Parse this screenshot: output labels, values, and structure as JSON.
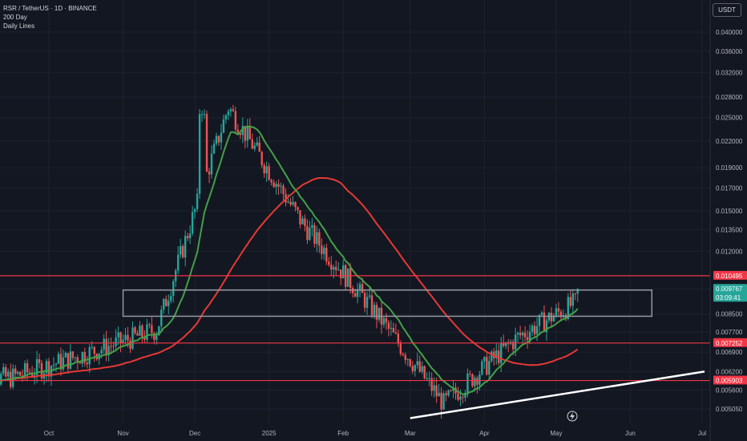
{
  "symbol_line": "RSR / TetherUS · 1D · BINANCE",
  "indicator_1": "200 Day",
  "indicator_2": "Daily Lines",
  "currency_button": "USDT",
  "colors": {
    "bg": "#131722",
    "up": "#26a69a",
    "down": "#ef5350",
    "ma200": "#e53935",
    "ma_short": "#43a047",
    "hline": "#f23645",
    "box": "#9598a1",
    "trendline": "#ffffff"
  },
  "chart_data": {
    "type": "candlestick",
    "scale": "log",
    "y_ticks": [
      "0.040000",
      "0.036000",
      "0.032000",
      "0.028000",
      "0.025000",
      "0.022000",
      "0.019000",
      "0.017000",
      "0.015000",
      "0.013500",
      "0.012000",
      "0.010495",
      "0.009767",
      "0.008500",
      "0.007700",
      "0.007252",
      "0.006900",
      "0.006200",
      "0.005903",
      "0.005600",
      "0.005050"
    ],
    "x_ticks": [
      "Oct",
      "Nov",
      "Dec",
      "2025",
      "Feb",
      "Mar",
      "Apr",
      "May",
      "Jun",
      "Jul"
    ],
    "horizontal_levels": [
      0.010495,
      0.007252,
      0.005903
    ],
    "price_labels": [
      {
        "text": "0.010495",
        "color": "#f23645"
      },
      {
        "text": "0.009767",
        "sub": "03:09:41",
        "color": "#26a69a"
      },
      {
        "text": "0.007252",
        "color": "#f23645"
      },
      {
        "text": "0.005903",
        "color": "#f23645"
      }
    ],
    "range_box": {
      "top": 0.0097,
      "bottom": 0.0084,
      "from": "2024-11-01",
      "to": "2025-06-10"
    },
    "trendline": {
      "from": {
        "date": "2025-03-01",
        "value": 0.0048
      },
      "to": {
        "date": "2025-07-02",
        "value": 0.0062
      }
    },
    "last_price": 0.009767,
    "series_ohlc_monthly": [
      {
        "date": "2024-09",
        "value": 0.006
      },
      {
        "date": "2024-10",
        "value": 0.0068
      },
      {
        "date": "2024-11",
        "value": 0.0078
      },
      {
        "date": "2024-12",
        "value": 0.0265
      },
      {
        "date": "2025-01",
        "value": 0.014
      },
      {
        "date": "2025-02",
        "value": 0.0085
      },
      {
        "date": "2025-03",
        "value": 0.0052
      },
      {
        "date": "2025-04",
        "value": 0.0075
      },
      {
        "date": "2025-05",
        "value": 0.0095
      }
    ]
  }
}
